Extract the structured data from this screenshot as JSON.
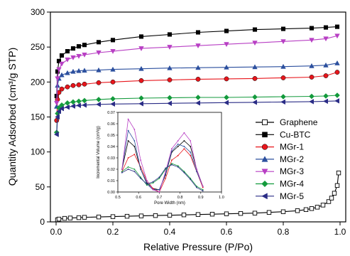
{
  "chart_data": [
    {
      "id": "main",
      "type": "line",
      "xlabel": "Relative Pressure (P/Po)",
      "ylabel": "Quantity Adsorbed (cm³/g STP)",
      "xlim": [
        -0.02,
        1.02
      ],
      "ylim": [
        0,
        300
      ],
      "xticks": [
        0.0,
        0.2,
        0.4,
        0.6,
        0.8,
        1.0
      ],
      "xtick_labels": [
        "0.0",
        "0.2",
        "0.4",
        "0.6",
        "0.8",
        "1.0"
      ],
      "yticks": [
        0,
        50,
        100,
        150,
        200,
        250,
        300
      ],
      "ytick_labels": [
        "0",
        "50",
        "100",
        "150",
        "200",
        "250",
        "300"
      ],
      "legend_position": "center-right",
      "series": [
        {
          "name": "Graphene",
          "color": "#000000",
          "marker": "open-square",
          "x": [
            0.005,
            0.01,
            0.03,
            0.05,
            0.08,
            0.1,
            0.15,
            0.2,
            0.25,
            0.3,
            0.35,
            0.4,
            0.45,
            0.5,
            0.55,
            0.6,
            0.65,
            0.7,
            0.75,
            0.8,
            0.85,
            0.88,
            0.9,
            0.92,
            0.94,
            0.96,
            0.97,
            0.98,
            0.99,
            0.995
          ],
          "y": [
            3,
            4,
            5,
            5.5,
            6,
            6.5,
            7,
            7.5,
            8,
            8.5,
            9,
            9.5,
            10,
            10.5,
            11,
            11.5,
            12,
            12.5,
            13.5,
            14.5,
            16,
            17.5,
            19,
            21,
            24,
            29,
            34,
            41,
            52,
            70
          ]
        },
        {
          "name": "Cu-BTC",
          "color": "#000000",
          "marker": "filled-square",
          "x": [
            0.002,
            0.005,
            0.01,
            0.02,
            0.04,
            0.06,
            0.08,
            0.1,
            0.15,
            0.2,
            0.3,
            0.4,
            0.5,
            0.6,
            0.7,
            0.8,
            0.9,
            0.95,
            0.99
          ],
          "y": [
            180,
            215,
            230,
            238,
            244,
            248,
            251,
            253,
            257,
            260,
            265,
            268,
            271,
            273,
            275,
            276,
            277,
            278,
            279
          ]
        },
        {
          "name": "MGr-1",
          "color": "#e8151b",
          "marker": "filled-circle",
          "x": [
            0.002,
            0.005,
            0.01,
            0.02,
            0.04,
            0.06,
            0.08,
            0.1,
            0.15,
            0.2,
            0.3,
            0.4,
            0.5,
            0.6,
            0.7,
            0.8,
            0.9,
            0.95,
            0.99
          ],
          "y": [
            145,
            175,
            185,
            190,
            193,
            195,
            196,
            197,
            199,
            200,
            202,
            203,
            204,
            204.5,
            205,
            206,
            207,
            209,
            214
          ]
        },
        {
          "name": "MGr-2",
          "color": "#2b4f9e",
          "marker": "filled-triangle-up",
          "x": [
            0.002,
            0.005,
            0.01,
            0.02,
            0.04,
            0.06,
            0.08,
            0.1,
            0.15,
            0.2,
            0.3,
            0.4,
            0.5,
            0.6,
            0.7,
            0.8,
            0.9,
            0.95,
            0.99
          ],
          "y": [
            165,
            195,
            205,
            210,
            213,
            215,
            216,
            216.5,
            217,
            218,
            219,
            220,
            220.5,
            221,
            221.5,
            222,
            223,
            224,
            227
          ]
        },
        {
          "name": "MGr-3",
          "color": "#b83fc4",
          "marker": "filled-triangle-down",
          "x": [
            0.002,
            0.005,
            0.01,
            0.02,
            0.04,
            0.06,
            0.08,
            0.1,
            0.15,
            0.2,
            0.3,
            0.4,
            0.5,
            0.6,
            0.7,
            0.8,
            0.9,
            0.95,
            0.99
          ],
          "y": [
            170,
            205,
            218,
            226,
            232,
            235,
            237,
            239,
            242,
            244,
            248,
            250,
            252,
            254,
            256,
            258,
            260,
            262,
            266
          ]
        },
        {
          "name": "MGr-4",
          "color": "#139a3c",
          "marker": "filled-diamond",
          "x": [
            0.002,
            0.005,
            0.01,
            0.02,
            0.04,
            0.06,
            0.08,
            0.1,
            0.15,
            0.2,
            0.3,
            0.4,
            0.5,
            0.6,
            0.7,
            0.8,
            0.9,
            0.95,
            0.99
          ],
          "y": [
            128,
            155,
            163,
            167,
            170,
            171.5,
            172.5,
            173.5,
            175,
            176,
            177,
            177.5,
            178,
            178,
            178.5,
            179,
            179.5,
            180,
            181
          ]
        },
        {
          "name": "MGr-5",
          "color": "#2a2c86",
          "marker": "filled-triangle-left",
          "x": [
            0.002,
            0.005,
            0.01,
            0.02,
            0.04,
            0.06,
            0.08,
            0.1,
            0.15,
            0.2,
            0.3,
            0.4,
            0.5,
            0.6,
            0.7,
            0.8,
            0.9,
            0.95,
            0.99
          ],
          "y": [
            125,
            150,
            158,
            162,
            164,
            165.5,
            166.5,
            167,
            168,
            168.5,
            169,
            169.5,
            170,
            170.5,
            171,
            171.5,
            172,
            172.5,
            173
          ]
        }
      ]
    },
    {
      "id": "inset",
      "type": "line",
      "xlabel": "Pore Width (nm)",
      "ylabel": "Incremental Volume (cm³/g)",
      "xlim": [
        0.5,
        1.0
      ],
      "ylim": [
        0.0,
        0.07
      ],
      "xticks": [
        0.5,
        0.6,
        0.7,
        0.8,
        0.9,
        1.0
      ],
      "xtick_labels": [
        "0.5",
        "0.6",
        "0.7",
        "0.8",
        "0.9",
        "1.0"
      ],
      "yticks": [
        0.0,
        0.01,
        0.02,
        0.03,
        0.04,
        0.05,
        0.06,
        0.07
      ],
      "ytick_labels": [
        "0.00",
        "0.01",
        "0.02",
        "0.03",
        "0.04",
        "0.05",
        "0.06",
        "0.07"
      ],
      "series": [
        {
          "name": "Cu-BTC",
          "color": "#000000",
          "x": [
            0.52,
            0.55,
            0.58,
            0.61,
            0.64,
            0.67,
            0.7,
            0.73,
            0.76,
            0.79,
            0.82,
            0.85,
            0.88,
            0.91
          ],
          "y": [
            0.02,
            0.045,
            0.04,
            0.02,
            0.008,
            0.003,
            0.002,
            0.015,
            0.035,
            0.04,
            0.045,
            0.04,
            0.02,
            0.005
          ]
        },
        {
          "name": "MGr-1",
          "color": "#e8151b",
          "x": [
            0.52,
            0.55,
            0.58,
            0.61,
            0.64,
            0.67,
            0.7,
            0.73,
            0.76,
            0.79,
            0.82,
            0.85,
            0.88,
            0.91
          ],
          "y": [
            0.018,
            0.03,
            0.033,
            0.022,
            0.01,
            0.003,
            0.0,
            0.012,
            0.028,
            0.032,
            0.038,
            0.032,
            0.018,
            0.004
          ]
        },
        {
          "name": "MGr-2",
          "color": "#2b4f9e",
          "x": [
            0.52,
            0.55,
            0.58,
            0.61,
            0.64,
            0.67,
            0.7,
            0.73,
            0.76,
            0.79,
            0.82,
            0.85,
            0.88,
            0.91
          ],
          "y": [
            0.02,
            0.054,
            0.045,
            0.02,
            0.007,
            0.002,
            0.002,
            0.016,
            0.036,
            0.042,
            0.04,
            0.035,
            0.018,
            0.005
          ]
        },
        {
          "name": "MGr-3",
          "color": "#b83fc4",
          "x": [
            0.52,
            0.55,
            0.58,
            0.61,
            0.64,
            0.67,
            0.7,
            0.73,
            0.76,
            0.79,
            0.82,
            0.85,
            0.88,
            0.91
          ],
          "y": [
            0.02,
            0.064,
            0.055,
            0.028,
            0.01,
            0.002,
            0.0,
            0.018,
            0.038,
            0.045,
            0.052,
            0.045,
            0.02,
            0.005
          ]
        },
        {
          "name": "MGr-4",
          "color": "#139a3c",
          "x": [
            0.52,
            0.55,
            0.58,
            0.61,
            0.64,
            0.67,
            0.7,
            0.73,
            0.76,
            0.79,
            0.82,
            0.85,
            0.88,
            0.91
          ],
          "y": [
            0.018,
            0.022,
            0.02,
            0.013,
            0.006,
            0.008,
            0.012,
            0.02,
            0.025,
            0.023,
            0.018,
            0.012,
            0.005,
            0.002
          ]
        },
        {
          "name": "MGr-5",
          "color": "#2a2c86",
          "x": [
            0.52,
            0.55,
            0.58,
            0.61,
            0.64,
            0.67,
            0.7,
            0.73,
            0.76,
            0.79,
            0.82,
            0.85,
            0.88,
            0.91
          ],
          "y": [
            0.017,
            0.02,
            0.018,
            0.012,
            0.007,
            0.009,
            0.013,
            0.021,
            0.024,
            0.022,
            0.017,
            0.011,
            0.004,
            0.001
          ]
        }
      ]
    }
  ]
}
